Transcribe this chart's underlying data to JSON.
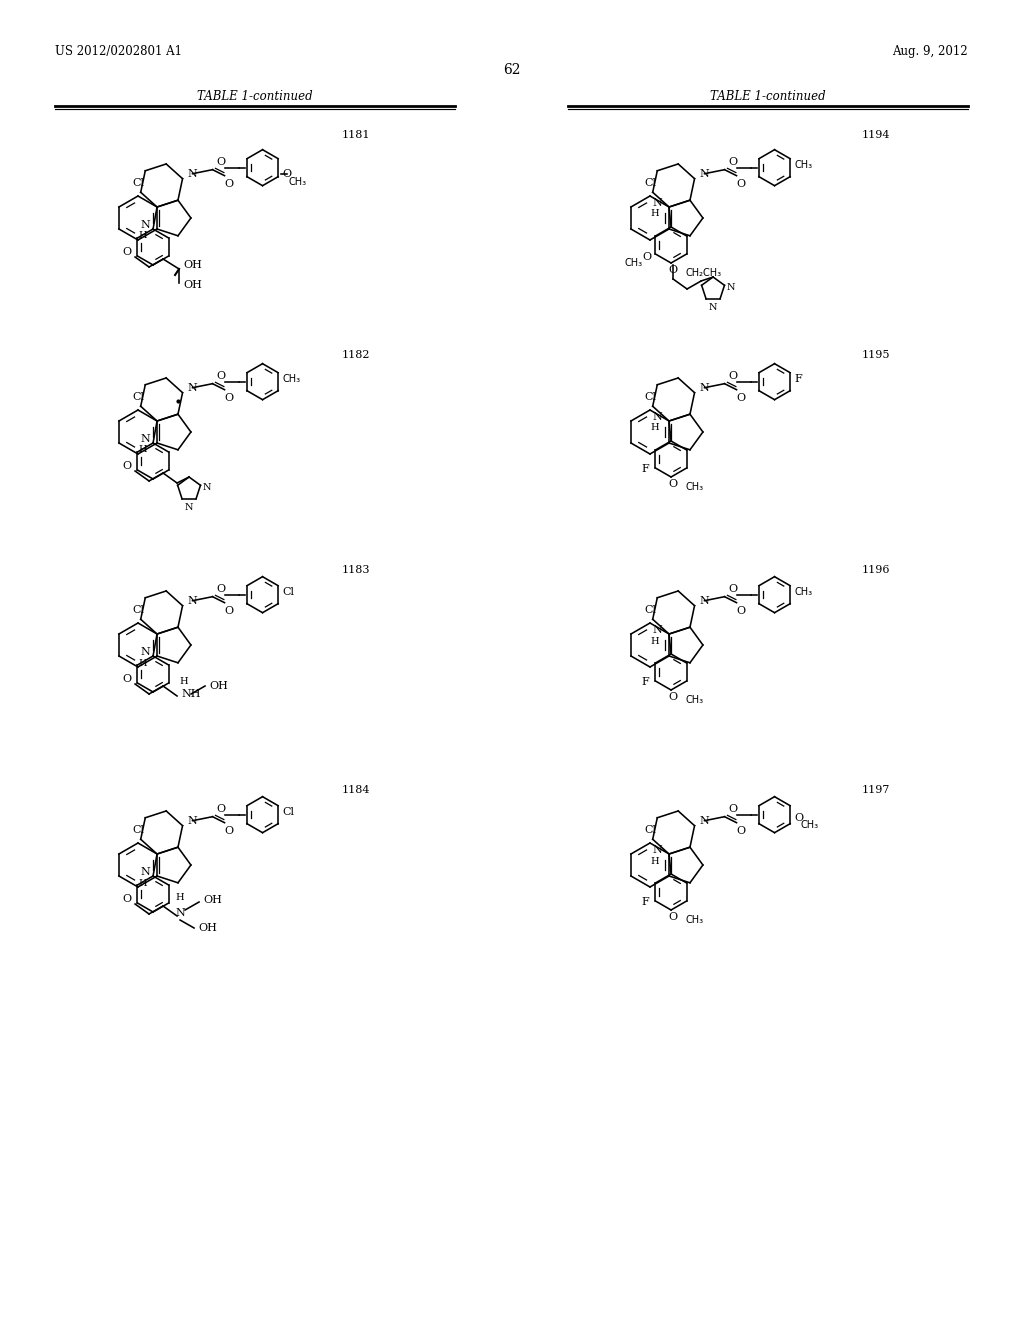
{
  "title_left": "US 2012/0202801 A1",
  "title_right": "Aug. 9, 2012",
  "page_number": "62",
  "table_title": "TABLE 1-continued",
  "bg_color": "#ffffff",
  "line_color": "#000000",
  "compounds": [
    "1181",
    "1182",
    "1183",
    "1184",
    "1194",
    "1195",
    "1196",
    "1197"
  ]
}
